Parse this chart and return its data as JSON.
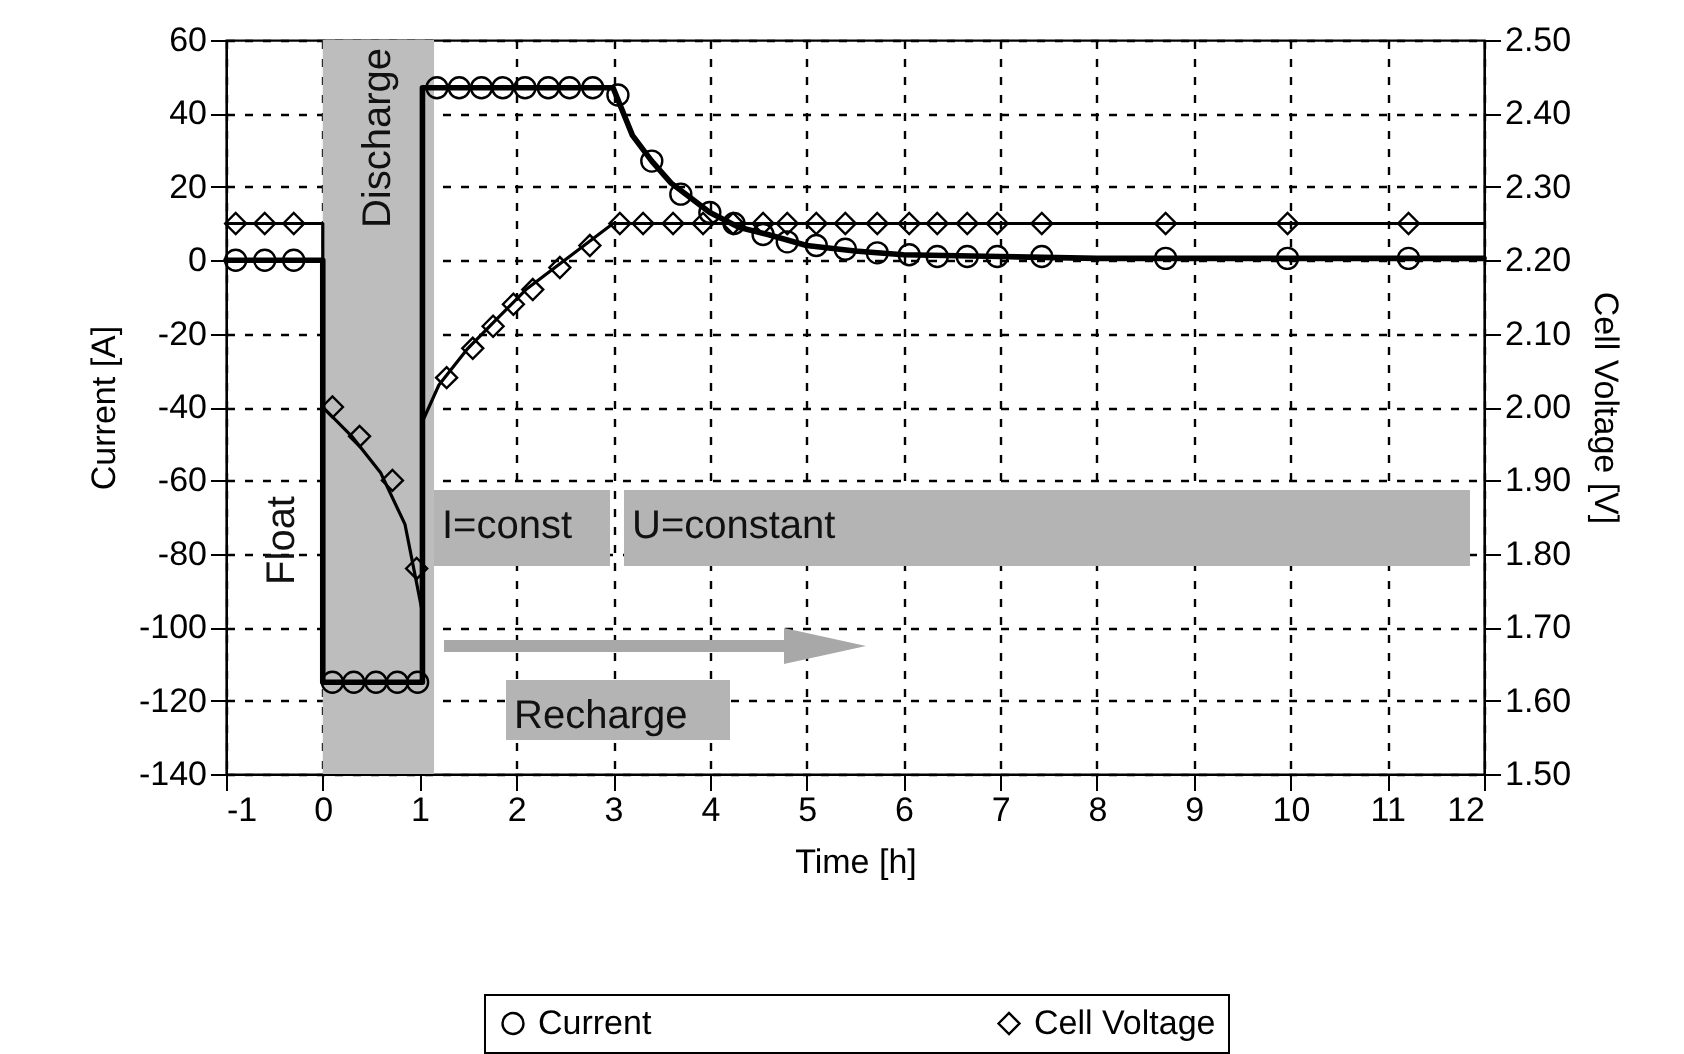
{
  "chart_data": {
    "type": "line",
    "xlabel": "Time [h]",
    "ylabel": "Current [A]",
    "y2label": "Cell Voltage [V]",
    "xlim": [
      -1,
      12
    ],
    "xticks": [
      -1,
      0,
      1,
      2,
      3,
      4,
      5,
      6,
      7,
      8,
      9,
      10,
      11,
      12
    ],
    "ylim": [
      -140,
      60
    ],
    "yticks": [
      -140,
      -120,
      -100,
      -80,
      -60,
      -40,
      -20,
      0,
      20,
      40,
      60
    ],
    "y2lim": [
      1.5,
      2.5
    ],
    "y2ticks": [
      {
        "value": 1.5,
        "label": "1.50"
      },
      {
        "value": 1.6,
        "label": "1.60"
      },
      {
        "value": 1.7,
        "label": "1.70"
      },
      {
        "value": 1.8,
        "label": "1.80"
      },
      {
        "value": 1.9,
        "label": "1.90"
      },
      {
        "value": 2.0,
        "label": "2.00"
      },
      {
        "value": 2.1,
        "label": "2.10"
      },
      {
        "value": 2.2,
        "label": "2.20"
      },
      {
        "value": 2.3,
        "label": "2.30"
      },
      {
        "value": 2.4,
        "label": "2.40"
      },
      {
        "value": 2.5,
        "label": "2.50"
      }
    ],
    "grid": true,
    "legend": "bottom",
    "series": [
      {
        "type": "line",
        "color": "#000000",
        "marker": "none",
        "x": [
          -1,
          0,
          0,
          1.03,
          1.03,
          3.0,
          3.2,
          3.4,
          3.6,
          3.8,
          4.0,
          4.3,
          4.6,
          5,
          5.5,
          6,
          7,
          8,
          9,
          10,
          11,
          12
        ],
        "values": [
          0,
          0,
          -115,
          -115,
          47,
          47,
          34,
          27,
          21,
          17,
          13,
          9,
          7,
          4,
          2.5,
          1.5,
          1,
          0.5,
          0.5,
          0.5,
          0.5,
          0.5
        ]
      },
      {
        "type": "scatter",
        "name": "Current",
        "color": "#000000",
        "marker": "circle",
        "x": [
          -0.9,
          -0.6,
          -0.3,
          0.1,
          0.32,
          0.55,
          0.77,
          0.98,
          1.18,
          1.41,
          1.64,
          1.86,
          2.09,
          2.33,
          2.55,
          2.79,
          3.05,
          3.4,
          3.7,
          4.0,
          4.25,
          4.55,
          4.8,
          5.1,
          5.4,
          5.73,
          6.06,
          6.35,
          6.66,
          6.97,
          7.43,
          8.71,
          9.97,
          11.22
        ],
        "values": [
          0,
          0,
          0,
          -115,
          -115,
          -115,
          -115,
          -115,
          47,
          47,
          47,
          47,
          47,
          47,
          47,
          47,
          45,
          27,
          18,
          13,
          10,
          7,
          5,
          4,
          3,
          2,
          1.5,
          1,
          1,
          1,
          1,
          0.5,
          0.5,
          0.5
        ]
      },
      {
        "type": "line",
        "axis": "y2",
        "color": "#000000",
        "marker": "none",
        "x": [
          -1,
          0,
          0,
          0.3,
          0.6,
          0.85,
          1.03,
          1.03,
          1.2,
          1.5,
          1.8,
          2.1,
          2.4,
          2.7,
          3.0,
          12
        ],
        "values": [
          2.25,
          2.25,
          2.0,
          1.96,
          1.91,
          1.84,
          1.72,
          1.98,
          2.03,
          2.08,
          2.12,
          2.16,
          2.19,
          2.22,
          2.25,
          2.25
        ]
      },
      {
        "type": "scatter",
        "axis": "y2",
        "name": "Cell Voltage",
        "color": "#000000",
        "marker": "diamond",
        "x": [
          -0.9,
          -0.6,
          -0.3,
          0.1,
          0.38,
          0.72,
          0.97,
          1.28,
          1.55,
          1.76,
          1.97,
          2.17,
          2.45,
          2.76,
          3.07,
          3.31,
          3.62,
          3.93,
          4.24,
          4.55,
          4.8,
          5.1,
          5.4,
          5.73,
          6.06,
          6.35,
          6.66,
          6.97,
          7.43,
          8.71,
          9.97,
          11.22
        ],
        "values": [
          2.25,
          2.25,
          2.25,
          2.0,
          1.96,
          1.9,
          1.78,
          2.04,
          2.08,
          2.11,
          2.14,
          2.16,
          2.19,
          2.22,
          2.25,
          2.25,
          2.25,
          2.25,
          2.25,
          2.25,
          2.25,
          2.25,
          2.25,
          2.25,
          2.25,
          2.25,
          2.25,
          2.25,
          2.25,
          2.25,
          2.25,
          2.25
        ]
      }
    ],
    "bands": [
      {
        "axis": "x",
        "from": 0,
        "to": 1.15,
        "label": "Discharge",
        "color": "#bdbdbd"
      }
    ],
    "annotations": [
      "Float",
      "I=const",
      "U=constant",
      "Recharge"
    ]
  }
}
